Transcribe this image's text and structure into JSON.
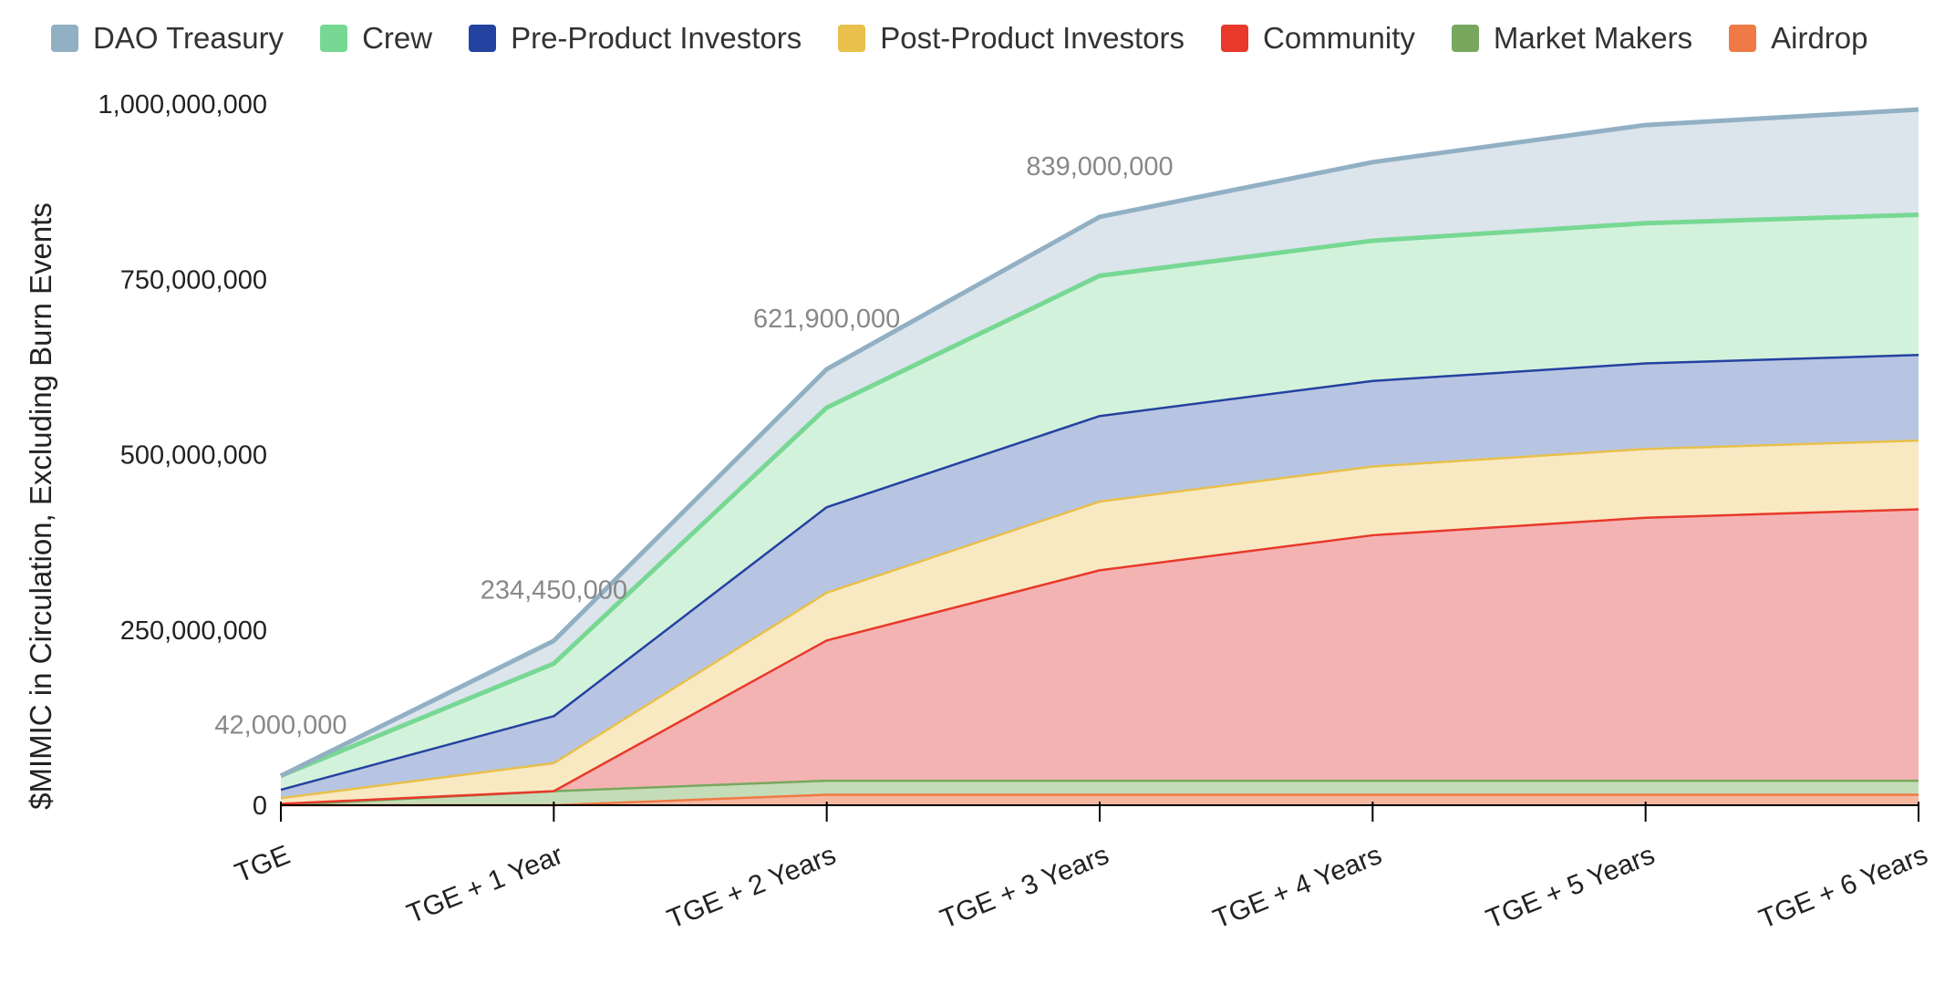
{
  "chart_data": {
    "type": "area",
    "stacked": true,
    "title": "",
    "xlabel": "",
    "ylabel": "$MIMIC in Circulation, Excluding Burn Events",
    "ylim": [
      0,
      1000000000
    ],
    "y_ticks": [
      "0",
      "250,000,000",
      "500,000,000",
      "750,000,000",
      "1,000,000,000"
    ],
    "y_tick_values": [
      0,
      250000000,
      500000000,
      750000000,
      1000000000
    ],
    "grid": false,
    "legend": "top",
    "categories": [
      "TGE",
      "TGE + 1 Year",
      "TGE + 2 Years",
      "TGE + 3 Years",
      "TGE + 4 Years",
      "TGE + 5 Years",
      "TGE + 6 Years"
    ],
    "series": [
      {
        "name": "Airdrop",
        "color": "#f07a45",
        "fill": "#f5b7a0",
        "values": [
          0,
          0,
          15000000,
          15000000,
          15000000,
          15000000,
          15000000
        ]
      },
      {
        "name": "Market Makers",
        "color": "#78a85e",
        "fill": "#c5dcb8",
        "values": [
          0,
          20000000,
          20000000,
          20000000,
          20000000,
          20000000,
          20000000
        ]
      },
      {
        "name": "Community",
        "color": "#e8392a",
        "fill": "#f4b3b3",
        "values": [
          2000000,
          0,
          200000000,
          300000000,
          350000000,
          375000000,
          387000000
        ]
      },
      {
        "name": "Post-Product Investors",
        "color": "#e8c04b",
        "fill": "#f8e9c3",
        "values": [
          8000000,
          40000000,
          68000000,
          98000000,
          98000000,
          98000000,
          98000000
        ]
      },
      {
        "name": "Pre-Product Investors",
        "color": "#2442a0",
        "fill": "#b8c5e2",
        "values": [
          12000000,
          67000000,
          122000000,
          122000000,
          122000000,
          122000000,
          122000000
        ]
      },
      {
        "name": "Crew",
        "color": "#77d893",
        "fill": "#d3f2dc",
        "values": [
          20000000,
          75000000,
          142000000,
          200000000,
          200000000,
          200000000,
          200000000
        ]
      },
      {
        "name": "DAO Treasury",
        "color": "#92b0c4",
        "fill": "#dce4ec",
        "values": [
          0,
          32450000,
          54900000,
          84000000,
          112000000,
          140000000,
          150000000
        ]
      }
    ],
    "annotations": [
      {
        "x": "TGE",
        "text": "42,000,000"
      },
      {
        "x": "TGE + 1 Year",
        "text": "234,450,000"
      },
      {
        "x": "TGE + 2 Years",
        "text": "621,900,000"
      },
      {
        "x": "TGE + 3 Years",
        "text": "839,000,000"
      }
    ]
  }
}
